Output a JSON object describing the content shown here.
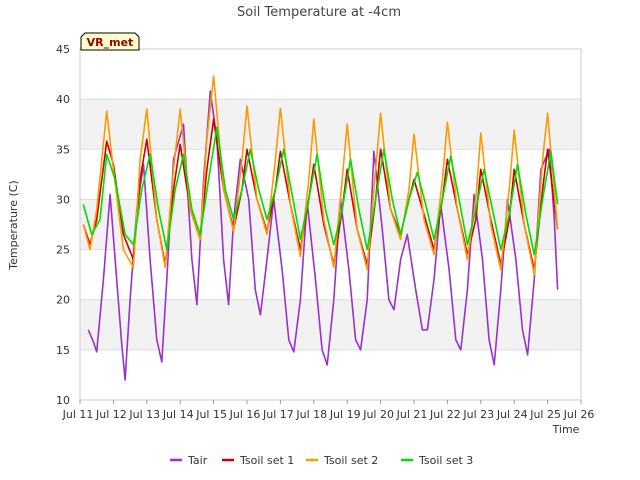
{
  "chart_data": {
    "type": "line",
    "title": "Soil Temperature at -4cm",
    "xlabel": "Time",
    "ylabel": "Temperature (C)",
    "badge": "VR_met",
    "ylim": [
      10,
      45
    ],
    "yticks": [
      10,
      15,
      20,
      25,
      30,
      35,
      40,
      45
    ],
    "xlim": [
      11,
      26
    ],
    "xticks": [
      {
        "value": 11,
        "label": "Jul 11"
      },
      {
        "value": 12,
        "label": "Jul 12"
      },
      {
        "value": 13,
        "label": "Jul 13"
      },
      {
        "value": 14,
        "label": "Jul 14"
      },
      {
        "value": 15,
        "label": "Jul 15"
      },
      {
        "value": 16,
        "label": "Jul 16"
      },
      {
        "value": 17,
        "label": "Jul 17"
      },
      {
        "value": 18,
        "label": "Jul 18"
      },
      {
        "value": 19,
        "label": "Jul 19"
      },
      {
        "value": 20,
        "label": "Jul 20"
      },
      {
        "value": 21,
        "label": "Jul 21"
      },
      {
        "value": 22,
        "label": "Jul 22"
      },
      {
        "value": 23,
        "label": "Jul 23"
      },
      {
        "value": 24,
        "label": "Jul 24"
      },
      {
        "value": 25,
        "label": "Jul 25"
      },
      {
        "value": 26,
        "label": "Jul 26"
      }
    ],
    "grid": true,
    "legend_position": "bottom",
    "series": [
      {
        "name": "Tair",
        "color": "#9932cc",
        "x": [
          11.25,
          11.4,
          11.5,
          11.7,
          11.9,
          12.1,
          12.25,
          12.35,
          12.5,
          12.7,
          12.9,
          13.1,
          13.3,
          13.45,
          13.6,
          13.8,
          14.1,
          14.35,
          14.5,
          14.7,
          14.9,
          15.1,
          15.3,
          15.45,
          15.6,
          15.8,
          16.05,
          16.25,
          16.4,
          16.6,
          16.8,
          17.05,
          17.25,
          17.4,
          17.6,
          17.8,
          18.05,
          18.25,
          18.4,
          18.6,
          18.8,
          19.05,
          19.25,
          19.4,
          19.6,
          19.8,
          20.05,
          20.25,
          20.4,
          20.6,
          20.8,
          21.05,
          21.25,
          21.4,
          21.6,
          21.8,
          22.05,
          22.25,
          22.4,
          22.6,
          22.8,
          23.05,
          23.25,
          23.4,
          23.6,
          23.8,
          24.05,
          24.25,
          24.4,
          24.6,
          24.8,
          25.05,
          25.2,
          25.3
        ],
        "y": [
          17,
          15.8,
          14.8,
          22,
          30.5,
          22,
          15.5,
          12,
          20,
          29,
          33.5,
          24,
          16,
          13.8,
          22,
          34,
          37.5,
          24,
          19.5,
          32,
          40.8,
          36,
          24,
          19.5,
          28,
          34,
          30,
          21,
          18.5,
          24,
          30,
          23,
          16,
          14.8,
          20,
          29.8,
          22,
          15,
          13.5,
          20,
          30,
          23,
          16,
          15,
          20,
          34.8,
          27,
          20,
          19,
          24,
          26.5,
          21,
          17,
          17,
          22,
          29.5,
          23,
          16,
          15,
          21,
          30.5,
          24,
          16,
          13.5,
          21,
          30,
          24,
          17,
          14.5,
          22,
          33,
          35,
          28,
          21
        ]
      },
      {
        "name": "Tsoil set 1",
        "color": "#cc0000",
        "x": [
          11.1,
          11.3,
          11.5,
          11.8,
          12,
          12.3,
          12.6,
          12.8,
          13,
          13.3,
          13.55,
          13.8,
          14,
          14.3,
          14.6,
          14.8,
          15,
          15.3,
          15.6,
          15.85,
          16,
          16.3,
          16.6,
          16.85,
          17,
          17.3,
          17.6,
          17.85,
          18,
          18.3,
          18.6,
          18.85,
          19,
          19.3,
          19.6,
          19.85,
          20,
          20.3,
          20.6,
          20.85,
          21,
          21.3,
          21.6,
          21.85,
          22,
          22.3,
          22.6,
          22.85,
          23,
          23.3,
          23.6,
          23.85,
          24,
          24.3,
          24.6,
          24.85,
          25,
          25.3
        ],
        "y": [
          27.5,
          25.5,
          28,
          35.8,
          33.5,
          26.5,
          24,
          32,
          36,
          28,
          23.5,
          31,
          35.5,
          29,
          26,
          33,
          38,
          31,
          27,
          31,
          35,
          30,
          26.8,
          31,
          34.8,
          29.5,
          25,
          30,
          33.5,
          27.5,
          23.5,
          29,
          33,
          27,
          23.5,
          30,
          35,
          29,
          26.5,
          30,
          32,
          28.5,
          25,
          30,
          34,
          29,
          24.5,
          28,
          33,
          28,
          23.5,
          28,
          33,
          27.5,
          23,
          31,
          35,
          27
        ]
      },
      {
        "name": "Tsoil set 2",
        "color": "#ff9900",
        "x": [
          11.1,
          11.3,
          11.5,
          11.8,
          12,
          12.3,
          12.6,
          12.8,
          13,
          13.3,
          13.55,
          13.8,
          14,
          14.3,
          14.6,
          14.8,
          15,
          15.3,
          15.6,
          15.85,
          16,
          16.3,
          16.6,
          16.85,
          17,
          17.3,
          17.6,
          17.85,
          18,
          18.3,
          18.6,
          18.85,
          19,
          19.3,
          19.6,
          19.85,
          20,
          20.3,
          20.6,
          20.85,
          21,
          21.3,
          21.6,
          21.85,
          22,
          22.3,
          22.6,
          22.85,
          23,
          23.3,
          23.6,
          23.85,
          24,
          24.3,
          24.6,
          24.85,
          25,
          25.3
        ],
        "y": [
          27.5,
          25,
          29,
          38.8,
          33,
          25,
          23.2,
          34,
          39,
          28,
          23.2,
          33,
          39,
          29,
          26,
          36,
          42.3,
          31,
          26.8,
          34,
          39.3,
          30,
          26.5,
          34,
          39.1,
          29.5,
          24.3,
          32,
          38,
          28,
          23.2,
          32,
          37.5,
          27,
          23,
          33,
          38.6,
          29,
          26,
          31,
          36.5,
          28,
          24.5,
          32,
          37.7,
          29,
          24,
          30,
          36.6,
          27.5,
          23,
          31,
          36.9,
          27.5,
          22.5,
          34,
          38.6,
          27
        ]
      },
      {
        "name": "Tsoil set 3",
        "color": "#00dd00",
        "x": [
          11.1,
          11.35,
          11.6,
          11.8,
          12.05,
          12.35,
          12.6,
          12.85,
          13.1,
          13.35,
          13.6,
          13.85,
          14.1,
          14.35,
          14.6,
          14.85,
          15.1,
          15.35,
          15.6,
          15.85,
          16.1,
          16.35,
          16.6,
          16.85,
          17.1,
          17.35,
          17.6,
          17.85,
          18.1,
          18.35,
          18.6,
          18.85,
          19.1,
          19.35,
          19.6,
          19.85,
          20.1,
          20.35,
          20.6,
          20.85,
          21.1,
          21.35,
          21.6,
          21.85,
          22.1,
          22.35,
          22.6,
          22.85,
          23.1,
          23.35,
          23.6,
          23.85,
          24.1,
          24.35,
          24.6,
          24.85,
          25.1,
          25.3
        ],
        "y": [
          29.5,
          26.5,
          28,
          34.5,
          32,
          26.5,
          25.5,
          31,
          34.5,
          29,
          25,
          31,
          34.5,
          29,
          26.5,
          32,
          37.2,
          31,
          28,
          31,
          35,
          31,
          28,
          31,
          35,
          30.5,
          26,
          30,
          34.5,
          29,
          25.5,
          29,
          34,
          29,
          25,
          30,
          35,
          30,
          26.5,
          30,
          32.7,
          29.5,
          26,
          30,
          34.3,
          30,
          25.5,
          29,
          33,
          29,
          25,
          28.5,
          33.5,
          28.5,
          24.5,
          30,
          34.8,
          29.5
        ]
      }
    ]
  }
}
